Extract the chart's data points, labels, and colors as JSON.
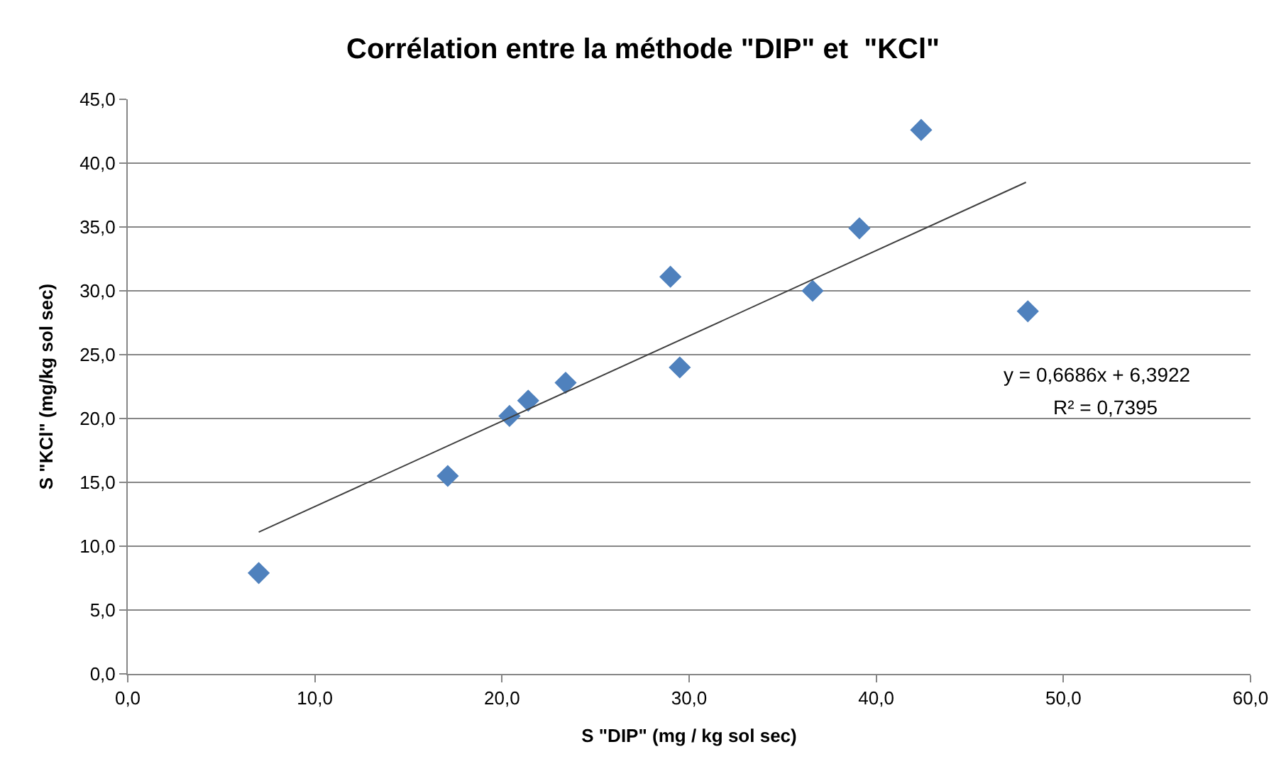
{
  "chart_data": {
    "type": "scatter",
    "title": "Corrélation entre la méthode \"DIP\" et  \"KCl\"",
    "xlabel": "S \"DIP\" (mg / kg sol sec)",
    "ylabel": "S \"KCl\" (mg/kg sol sec)",
    "series": [
      {
        "color": "#4f81bd",
        "marker": "diamond",
        "x": [
          7.0,
          17.1,
          20.4,
          21.4,
          23.4,
          29.0,
          29.5,
          36.6,
          39.1,
          42.4,
          48.1
        ],
        "values": [
          7.9,
          15.5,
          20.2,
          21.4,
          22.8,
          31.1,
          24.0,
          30.0,
          34.9,
          42.6,
          28.4
        ]
      },
      {
        "type": "line",
        "color": "#404040",
        "marker": "none",
        "line_style": "solid",
        "x": [
          7.0,
          48.0
        ],
        "values": [
          11.1,
          38.5
        ]
      }
    ],
    "annotations": [
      "y = 0,6686x + 6,3922",
      "R² = 0,7395"
    ],
    "xlim": [
      0,
      60
    ],
    "ylim": [
      0,
      45
    ],
    "xticks": [
      {
        "value": 0,
        "label": "0,0"
      },
      {
        "value": 10,
        "label": "10,0"
      },
      {
        "value": 20,
        "label": "20,0"
      },
      {
        "value": 30,
        "label": "30,0"
      },
      {
        "value": 40,
        "label": "40,0"
      },
      {
        "value": 50,
        "label": "50,0"
      },
      {
        "value": 60,
        "label": "60,0"
      }
    ],
    "yticks": [
      {
        "value": 0,
        "label": "0,0"
      },
      {
        "value": 5,
        "label": "5,0"
      },
      {
        "value": 10,
        "label": "10,0"
      },
      {
        "value": 15,
        "label": "15,0"
      },
      {
        "value": 20,
        "label": "20,0"
      },
      {
        "value": 25,
        "label": "25,0"
      },
      {
        "value": 30,
        "label": "30,0"
      },
      {
        "value": 35,
        "label": "35,0"
      },
      {
        "value": 40,
        "label": "40,0"
      },
      {
        "value": 45,
        "label": "45,0"
      }
    ],
    "grid": "y",
    "legend": false
  }
}
